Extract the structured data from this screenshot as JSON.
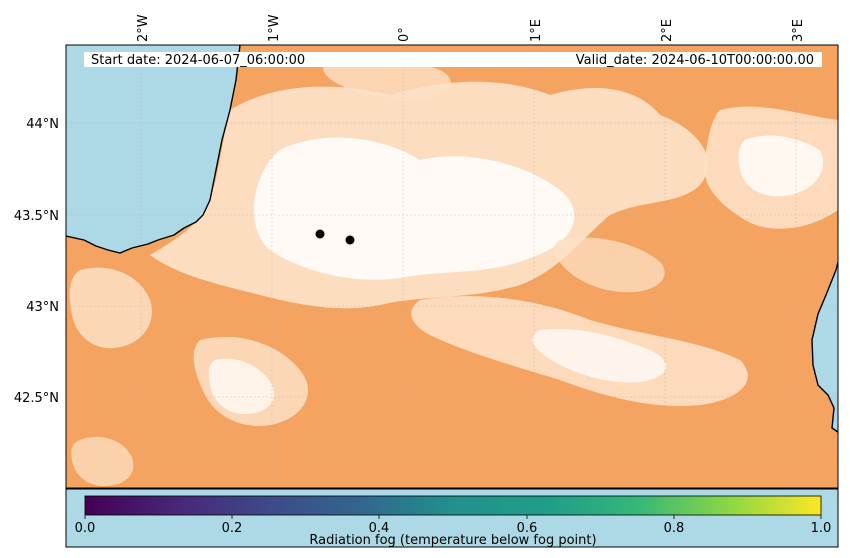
{
  "map": {
    "start_date": "Start date: 2024-06-07_06:00:00",
    "valid_date": "Valid_date: 2024-06-10T00:00:00.00",
    "lon_ticks": [
      "2°W",
      "1°W",
      "0°",
      "1°E",
      "2°E",
      "3°E"
    ],
    "lat_ticks": [
      "44°N",
      "43.5°N",
      "43°N",
      "42.5°N"
    ],
    "colors": {
      "sea": "#add8e6",
      "land": "#f4a460",
      "fog_light": "#fde0c5",
      "coastline": "#000000"
    },
    "markers": [
      {
        "name": "marker-point-1"
      },
      {
        "name": "marker-point-2"
      }
    ]
  },
  "colorbar": {
    "label": "Radiation fog (temperature below fog point)",
    "ticks": [
      "0.0",
      "0.2",
      "0.4",
      "0.6",
      "0.8",
      "1.0"
    ],
    "range": [
      0.0,
      1.0
    ],
    "colormap": "viridis",
    "background": "#add8e6"
  }
}
